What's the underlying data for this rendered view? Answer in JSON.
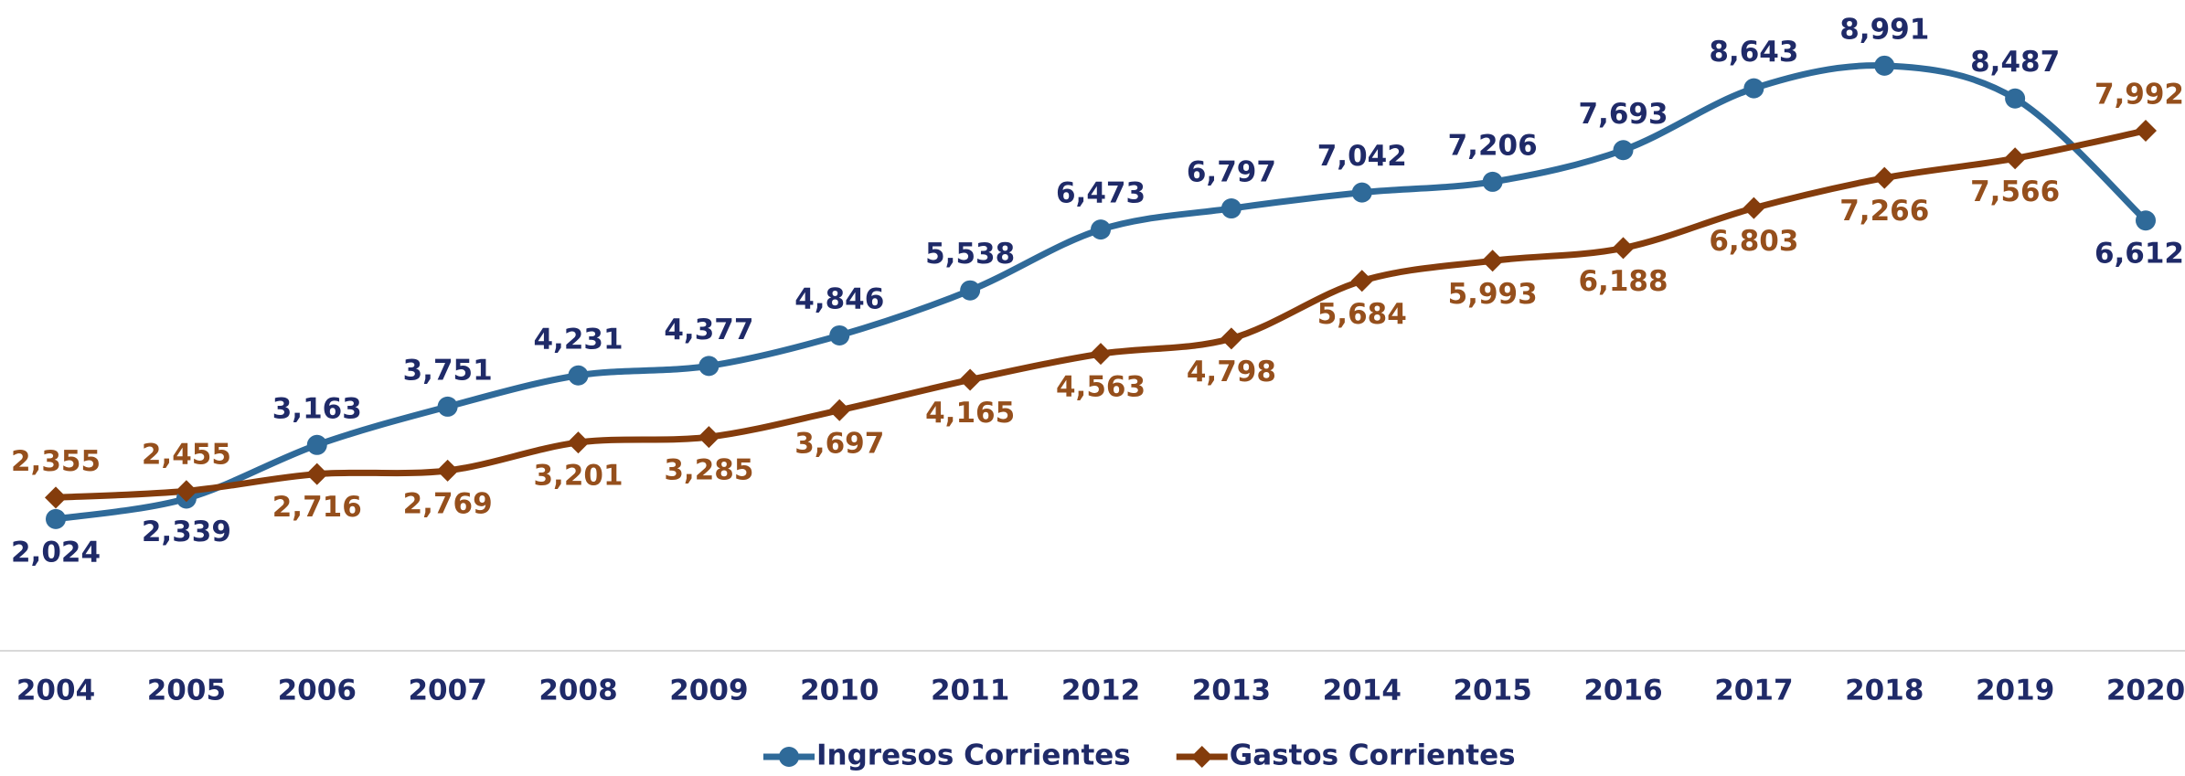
{
  "chart_data": {
    "type": "line",
    "categories": [
      "2004",
      "2005",
      "2006",
      "2007",
      "2008",
      "2009",
      "2010",
      "2011",
      "2012",
      "2013",
      "2014",
      "2015",
      "2016",
      "2017",
      "2018",
      "2019",
      "2020"
    ],
    "series": [
      {
        "name": "Ingresos Corrientes",
        "color": "#2f6a99",
        "label_color": "#1f2a68",
        "marker": "circle",
        "values": [
          2024,
          2339,
          3163,
          3751,
          4231,
          4377,
          4846,
          5538,
          6473,
          6797,
          7042,
          7206,
          7693,
          8643,
          8991,
          8487,
          6612
        ],
        "value_labels": [
          "2,024",
          "2,339",
          "3,163",
          "3,751",
          "4,231",
          "4,377",
          "4,846",
          "5,538",
          "6,473",
          "6,797",
          "7,042",
          "7,206",
          "7,693",
          "8,643",
          "8,991",
          "8,487",
          "6,612"
        ]
      },
      {
        "name": "Gastos Corrientes",
        "color": "#843c0c",
        "label_color": "#954f1c",
        "marker": "diamond",
        "values": [
          2355,
          2455,
          2716,
          2769,
          3201,
          3285,
          3697,
          4165,
          4563,
          4798,
          5684,
          5993,
          6188,
          6803,
          7266,
          7566,
          7992
        ],
        "value_labels": [
          "2,355",
          "2,455",
          "2,716",
          "2,769",
          "3,201",
          "3,285",
          "3,697",
          "4,165",
          "4,563",
          "4,798",
          "5,684",
          "5,993",
          "6,188",
          "6,803",
          "7,266",
          "7,566",
          "7,992"
        ]
      }
    ],
    "ylim": [
      0,
      10000
    ],
    "legend": "bottom"
  }
}
